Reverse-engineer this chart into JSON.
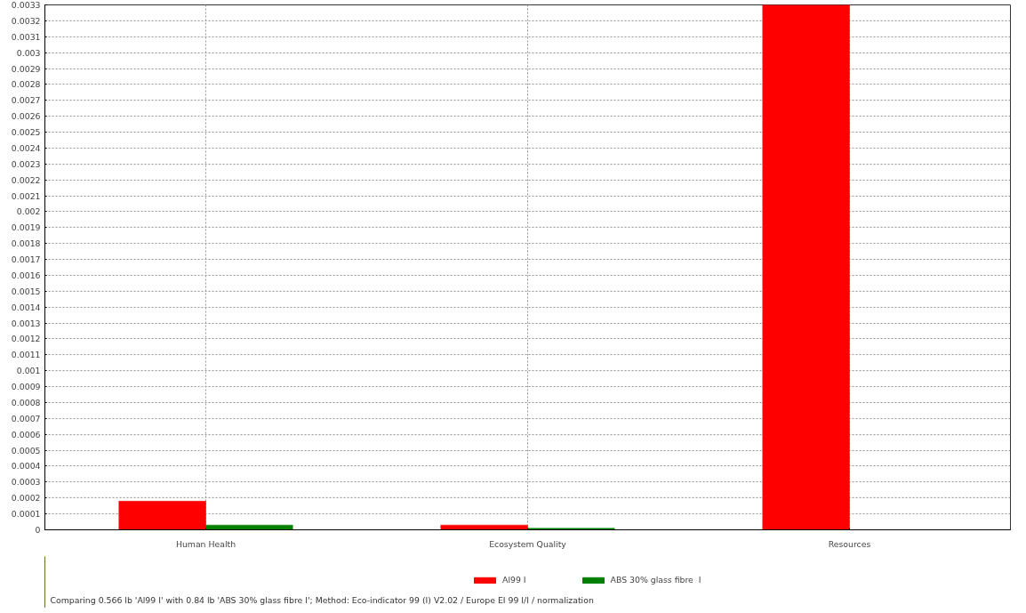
{
  "chart_data": {
    "type": "bar",
    "categories": [
      "Human Health",
      "Ecosystem Quality",
      "Resources"
    ],
    "series": [
      {
        "name": "Al99 I",
        "color": "#ff0000",
        "values": [
          0.00018,
          3e-05,
          0.0033
        ]
      },
      {
        "name": "ABS 30% glass fibre  I",
        "color": "#008000",
        "values": [
          3e-05,
          1e-05,
          null
        ]
      }
    ],
    "ylim": [
      0,
      0.0033
    ],
    "yticks": [
      0,
      0.0001,
      0.0002,
      0.0003,
      0.0004,
      0.0005,
      0.0006,
      0.0007,
      0.0008,
      0.0009,
      0.001,
      0.0011,
      0.0012,
      0.0013,
      0.0014,
      0.0015,
      0.0016,
      0.0017,
      0.0018,
      0.0019,
      0.002,
      0.0021,
      0.0022,
      0.0023,
      0.0024,
      0.0025,
      0.0026,
      0.0027,
      0.0028,
      0.0029,
      0.003,
      0.0031,
      0.0032,
      0.0033
    ],
    "grid": true,
    "legend": "bottom",
    "annotations": [
      "Comparing 0.566 lb 'Al99 I' with 0.84 lb 'ABS 30% glass fibre  I';  Method: Eco-indicator 99 (I) V2.02 / Europe EI 99 I/I / normalization"
    ]
  }
}
